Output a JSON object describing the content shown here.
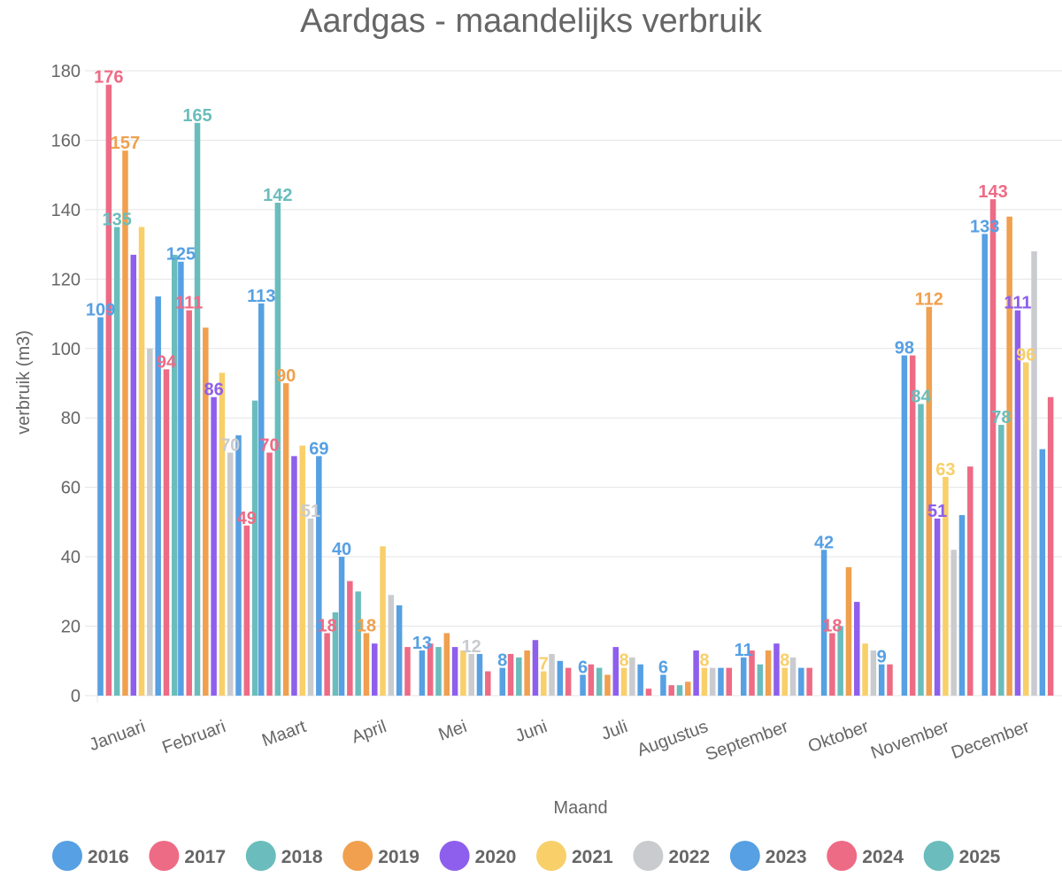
{
  "chart_data": {
    "type": "bar",
    "title": "Aardgas - maandelijks verbruik",
    "xlabel": "Maand",
    "ylabel": "verbruik (m3)",
    "ylim": [
      0,
      180
    ],
    "yticks": [
      0,
      20,
      40,
      60,
      80,
      100,
      120,
      140,
      160,
      180
    ],
    "grid": true,
    "legend_position": "bottom",
    "categories": [
      "Januari",
      "Februari",
      "Maart",
      "April",
      "Mei",
      "Juni",
      "Juli",
      "Augustus",
      "September",
      "Oktober",
      "November",
      "December"
    ],
    "series": [
      {
        "name": "2016",
        "color": "#56a0e3",
        "values": [
          109,
          125,
          113,
          40,
          13,
          8,
          6,
          6,
          11,
          42,
          98,
          133
        ]
      },
      {
        "name": "2017",
        "color": "#ee6b85",
        "values": [
          176,
          111,
          70,
          33,
          15,
          12,
          9,
          3,
          13,
          18,
          98,
          143
        ]
      },
      {
        "name": "2018",
        "color": "#6abdbc",
        "values": [
          135,
          165,
          142,
          30,
          14,
          11,
          8,
          3,
          9,
          20,
          84,
          78
        ]
      },
      {
        "name": "2019",
        "color": "#f0a04e",
        "values": [
          157,
          106,
          90,
          18,
          18,
          13,
          6,
          4,
          13,
          37,
          112,
          138
        ]
      },
      {
        "name": "2020",
        "color": "#8e5fec",
        "values": [
          127,
          86,
          69,
          15,
          14,
          16,
          14,
          13,
          15,
          27,
          51,
          111
        ]
      },
      {
        "name": "2021",
        "color": "#f8cf69",
        "values": [
          135,
          93,
          72,
          43,
          13,
          7,
          8,
          8,
          8,
          15,
          63,
          96
        ]
      },
      {
        "name": "2022",
        "color": "#c9cbcf",
        "values": [
          100,
          70,
          51,
          29,
          12,
          12,
          11,
          8,
          11,
          13,
          42,
          128
        ]
      },
      {
        "name": "2023",
        "color": "#56a0e3",
        "values": [
          115,
          75,
          69,
          26,
          12,
          10,
          9,
          8,
          8,
          9,
          52,
          71
        ]
      },
      {
        "name": "2024",
        "color": "#ee6b85",
        "values": [
          94,
          49,
          18,
          14,
          7,
          8,
          2,
          8,
          8,
          9,
          66,
          86
        ]
      },
      {
        "name": "2025",
        "color": "#6abdbc",
        "values": [
          127,
          85,
          24,
          null,
          null,
          null,
          null,
          null,
          null,
          null,
          null,
          null
        ]
      }
    ],
    "data_labels": [
      {
        "series": "2016",
        "category": "Januari",
        "text": "109"
      },
      {
        "series": "2017",
        "category": "Januari",
        "text": "176"
      },
      {
        "series": "2018",
        "category": "Januari",
        "text": "135"
      },
      {
        "series": "2019",
        "category": "Januari",
        "text": "157"
      },
      {
        "series": "2024",
        "category": "Januari",
        "text": "94"
      },
      {
        "series": "2016",
        "category": "Februari",
        "text": "125"
      },
      {
        "series": "2017",
        "category": "Februari",
        "text": "111"
      },
      {
        "series": "2018",
        "category": "Februari",
        "text": "165"
      },
      {
        "series": "2020",
        "category": "Februari",
        "text": "86"
      },
      {
        "series": "2022",
        "category": "Februari",
        "text": "70"
      },
      {
        "series": "2024",
        "category": "Februari",
        "text": "49"
      },
      {
        "series": "2016",
        "category": "Maart",
        "text": "113"
      },
      {
        "series": "2017",
        "category": "Maart",
        "text": "70"
      },
      {
        "series": "2018",
        "category": "Maart",
        "text": "142"
      },
      {
        "series": "2019",
        "category": "Maart",
        "text": "90"
      },
      {
        "series": "2022",
        "category": "Maart",
        "text": "51"
      },
      {
        "series": "2023",
        "category": "Maart",
        "text": "69"
      },
      {
        "series": "2024",
        "category": "Maart",
        "text": "18"
      },
      {
        "series": "2016",
        "category": "April",
        "text": "40"
      },
      {
        "series": "2019",
        "category": "April",
        "text": "18"
      },
      {
        "series": "2016",
        "category": "Mei",
        "text": "13"
      },
      {
        "series": "2022",
        "category": "Mei",
        "text": "12"
      },
      {
        "series": "2016",
        "category": "Juni",
        "text": "8"
      },
      {
        "series": "2021",
        "category": "Juni",
        "text": "7"
      },
      {
        "series": "2016",
        "category": "Juli",
        "text": "6"
      },
      {
        "series": "2021",
        "category": "Juli",
        "text": "8"
      },
      {
        "series": "2016",
        "category": "Augustus",
        "text": "6"
      },
      {
        "series": "2021",
        "category": "Augustus",
        "text": "8"
      },
      {
        "series": "2016",
        "category": "September",
        "text": "11"
      },
      {
        "series": "2021",
        "category": "September",
        "text": "8"
      },
      {
        "series": "2016",
        "category": "Oktober",
        "text": "42"
      },
      {
        "series": "2017",
        "category": "Oktober",
        "text": "18"
      },
      {
        "series": "2023",
        "category": "Oktober",
        "text": "9"
      },
      {
        "series": "2016",
        "category": "November",
        "text": "98"
      },
      {
        "series": "2018",
        "category": "November",
        "text": "84"
      },
      {
        "series": "2019",
        "category": "November",
        "text": "112"
      },
      {
        "series": "2020",
        "category": "November",
        "text": "51"
      },
      {
        "series": "2021",
        "category": "November",
        "text": "63"
      },
      {
        "series": "2016",
        "category": "December",
        "text": "133"
      },
      {
        "series": "2017",
        "category": "December",
        "text": "143"
      },
      {
        "series": "2018",
        "category": "December",
        "text": "78"
      },
      {
        "series": "2020",
        "category": "December",
        "text": "111"
      },
      {
        "series": "2021",
        "category": "December",
        "text": "96"
      }
    ]
  }
}
